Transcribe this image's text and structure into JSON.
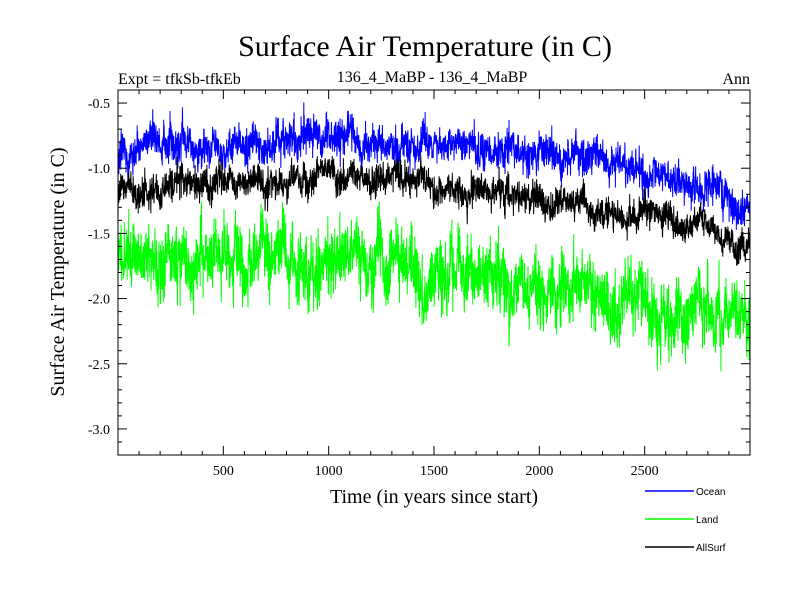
{
  "chart_data": {
    "type": "line",
    "title": "Surface Air Temperature (in C)",
    "subtitle_left": "Expt = tfkSb-tfkEb",
    "subtitle_center": "136_4_MaBP - 136_4_MaBP",
    "subtitle_right": "Ann",
    "xlabel": "Time (in years since start)",
    "ylabel": "Surface Air Temperature (in C)",
    "xlim": [
      0,
      3000
    ],
    "ylim": [
      -3.2,
      -0.4
    ],
    "xticks": [
      500,
      1000,
      1500,
      2000,
      2500
    ],
    "xtick_labels": [
      "500",
      "1000",
      "1500",
      "2000",
      "2500"
    ],
    "yticks": [
      -0.5,
      -1.0,
      -1.5,
      -2.0,
      -2.5,
      -3.0
    ],
    "ytick_labels": [
      "-0.5",
      "-1.0",
      "-1.5",
      "-2.0",
      "-2.5",
      "-3.0"
    ],
    "series": [
      {
        "name": "Ocean",
        "color": "#0000ff",
        "x": [
          0,
          250,
          500,
          750,
          1000,
          1250,
          1500,
          1750,
          2000,
          2250,
          2500,
          2750,
          3000
        ],
        "values": [
          -0.95,
          -0.85,
          -0.82,
          -0.8,
          -0.79,
          -0.8,
          -0.83,
          -0.85,
          -0.9,
          -0.95,
          -1.05,
          -1.15,
          -1.3
        ],
        "noise": 0.12
      },
      {
        "name": "Land",
        "color": "#00ff00",
        "x": [
          0,
          250,
          500,
          750,
          1000,
          1250,
          1500,
          1750,
          2000,
          2250,
          2500,
          2750,
          3000
        ],
        "values": [
          -1.65,
          -1.7,
          -1.72,
          -1.72,
          -1.7,
          -1.7,
          -1.78,
          -1.85,
          -1.9,
          -1.98,
          -2.05,
          -2.1,
          -2.12
        ],
        "noise": 0.22
      },
      {
        "name": "AllSurf",
        "color": "#000000",
        "x": [
          0,
          250,
          500,
          750,
          1000,
          1250,
          1500,
          1750,
          2000,
          2250,
          2500,
          2750,
          3000
        ],
        "values": [
          -1.2,
          -1.15,
          -1.12,
          -1.1,
          -1.08,
          -1.08,
          -1.13,
          -1.18,
          -1.25,
          -1.32,
          -1.38,
          -1.45,
          -1.6
        ],
        "noise": 0.1
      }
    ],
    "legend": [
      "Ocean",
      "Land",
      "AllSurf"
    ],
    "legend_position": "bottom-right"
  }
}
